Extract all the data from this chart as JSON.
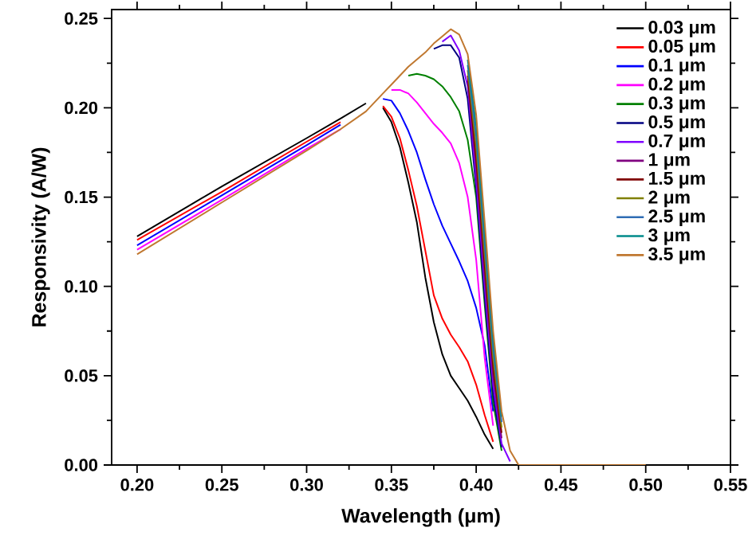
{
  "chart_data": {
    "type": "line",
    "xlabel": "Wavelength (μm)",
    "ylabel": "Responsivity (A/W)",
    "x": [
      0.2,
      0.25,
      0.3,
      0.32,
      0.335,
      0.34,
      0.345,
      0.35,
      0.355,
      0.36,
      0.365,
      0.37,
      0.375,
      0.38,
      0.385,
      0.39,
      0.395,
      0.4,
      0.405,
      0.41,
      0.415,
      0.42,
      0.425,
      0.5
    ],
    "series": [
      {
        "name": "0.03 μm",
        "color": "#000000",
        "values": [
          0.128,
          0.156,
          0.183,
          0.194,
          0.2025,
          null,
          0.2,
          0.192,
          0.178,
          0.158,
          0.136,
          0.105,
          0.08,
          0.062,
          0.05,
          0.043,
          0.036,
          0.027,
          0.017,
          0.009,
          null,
          null,
          null,
          null
        ]
      },
      {
        "name": "0.05 μm",
        "color": "#ff0000",
        "values": [
          0.126,
          0.153,
          0.181,
          0.192,
          null,
          null,
          0.201,
          0.195,
          0.183,
          0.165,
          0.145,
          0.12,
          0.095,
          0.082,
          0.073,
          0.066,
          0.058,
          0.045,
          0.028,
          0.013,
          null,
          null,
          null,
          null
        ]
      },
      {
        "name": "0.1 μm",
        "color": "#0000ff",
        "values": [
          0.123,
          0.151,
          0.179,
          0.1905,
          null,
          null,
          0.205,
          0.204,
          0.197,
          0.187,
          0.175,
          0.16,
          0.146,
          0.134,
          0.124,
          0.114,
          0.103,
          0.088,
          0.067,
          0.03,
          null,
          null,
          null,
          null
        ]
      },
      {
        "name": "0.2 μm",
        "color": "#ff00ff",
        "values": [
          0.1205,
          0.1485,
          0.177,
          0.188,
          null,
          null,
          null,
          0.21,
          0.21,
          0.208,
          0.203,
          0.197,
          0.191,
          0.186,
          0.18,
          0.169,
          0.15,
          0.115,
          0.06,
          0.022,
          null,
          null,
          null,
          null
        ]
      },
      {
        "name": "0.3 μm",
        "color": "#008000",
        "values": [
          null,
          null,
          null,
          null,
          null,
          null,
          null,
          null,
          null,
          0.218,
          0.219,
          0.218,
          0.216,
          0.212,
          0.206,
          0.198,
          0.182,
          0.15,
          0.09,
          0.035,
          0.008,
          null,
          null,
          null
        ]
      },
      {
        "name": "0.5 μm",
        "color": "#000080",
        "values": [
          null,
          null,
          null,
          null,
          null,
          null,
          null,
          null,
          null,
          null,
          null,
          null,
          0.233,
          0.235,
          0.235,
          0.228,
          0.205,
          0.155,
          0.094,
          0.04,
          0.01,
          null,
          null,
          null
        ]
      },
      {
        "name": "0.7 μm",
        "color": "#8000ff",
        "values": [
          null,
          null,
          null,
          null,
          null,
          null,
          null,
          null,
          null,
          null,
          null,
          null,
          null,
          0.237,
          0.2405,
          0.232,
          0.212,
          0.16,
          0.1,
          0.045,
          0.012,
          0.002,
          null,
          null
        ]
      },
      {
        "name": "1 μm",
        "color": "#800080",
        "values": [
          null,
          null,
          null,
          null,
          null,
          null,
          null,
          null,
          null,
          null,
          null,
          null,
          null,
          null,
          null,
          null,
          0.215,
          0.166,
          0.106,
          0.05,
          0.015,
          null,
          null,
          null
        ]
      },
      {
        "name": "1.5 μm",
        "color": "#800000",
        "values": [
          null,
          null,
          null,
          null,
          null,
          null,
          null,
          null,
          null,
          null,
          null,
          null,
          null,
          null,
          null,
          null,
          0.218,
          0.172,
          0.112,
          0.055,
          0.018,
          null,
          null,
          null
        ]
      },
      {
        "name": "2 μm",
        "color": "#808000",
        "values": [
          null,
          null,
          null,
          null,
          null,
          null,
          null,
          null,
          null,
          null,
          null,
          null,
          null,
          null,
          null,
          null,
          0.221,
          0.178,
          0.118,
          0.06,
          0.021,
          null,
          null,
          null
        ]
      },
      {
        "name": "2.5 μm",
        "color": "#2e6db4",
        "values": [
          null,
          null,
          null,
          null,
          null,
          null,
          null,
          null,
          null,
          null,
          null,
          null,
          null,
          null,
          null,
          null,
          0.224,
          0.184,
          0.124,
          0.065,
          0.024,
          null,
          null,
          null
        ]
      },
      {
        "name": "3 μm",
        "color": "#008b8b",
        "values": [
          null,
          null,
          null,
          null,
          null,
          null,
          null,
          null,
          null,
          null,
          null,
          null,
          null,
          null,
          null,
          null,
          0.227,
          0.19,
          0.13,
          0.07,
          0.027,
          null,
          null,
          null
        ]
      },
      {
        "name": "3.5 μm",
        "color": "#c07830",
        "values": [
          0.118,
          0.147,
          0.176,
          0.188,
          0.198,
          0.203,
          0.208,
          0.213,
          0.218,
          0.223,
          0.227,
          0.231,
          0.236,
          0.24,
          0.244,
          0.241,
          0.23,
          0.196,
          0.136,
          0.075,
          0.03,
          0.008,
          0,
          0
        ]
      }
    ],
    "xlim": [
      0.185,
      0.55
    ],
    "ylim": [
      0,
      0.255
    ],
    "xticks": [
      {
        "value": 0.2,
        "label": "0.20"
      },
      {
        "value": 0.25,
        "label": "0.25"
      },
      {
        "value": 0.3,
        "label": "0.30"
      },
      {
        "value": 0.35,
        "label": "0.35"
      },
      {
        "value": 0.4,
        "label": "0.40"
      },
      {
        "value": 0.45,
        "label": "0.45"
      },
      {
        "value": 0.5,
        "label": "0.50"
      },
      {
        "value": 0.55,
        "label": "0.55"
      }
    ],
    "yticks": [
      {
        "value": 0,
        "label": "0.00"
      },
      {
        "value": 0.05,
        "label": "0.05"
      },
      {
        "value": 0.1,
        "label": "0.10"
      },
      {
        "value": 0.15,
        "label": "0.15"
      },
      {
        "value": 0.2,
        "label": "0.20"
      },
      {
        "value": 0.25,
        "label": "0.25"
      }
    ],
    "legend": "top right"
  }
}
